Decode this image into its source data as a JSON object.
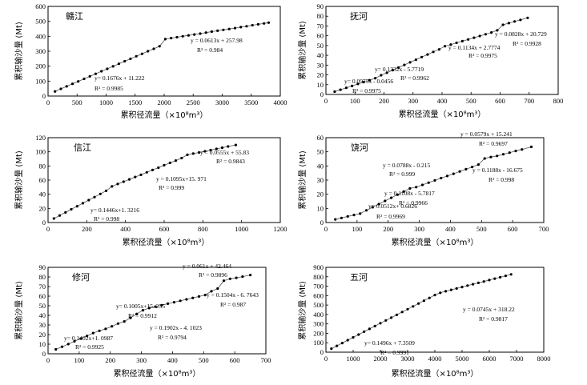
{
  "figure": {
    "xlabel": "累积径流量（×10⁸m³）",
    "ylabel": "累积输沙量 (Mt)"
  },
  "chart_data": [
    {
      "type": "scatter",
      "title": "赣江",
      "xlim": [
        0,
        4000
      ],
      "ylim": [
        0,
        600
      ],
      "xticks": [
        0,
        500,
        1000,
        1500,
        2000,
        2500,
        3000,
        3500,
        4000
      ],
      "yticks": [
        0,
        100,
        200,
        300,
        400,
        500,
        600
      ],
      "tick_labels_x": [
        "0",
        "500",
        "1000",
        "1500",
        "2000",
        "2500",
        "3000",
        "3500",
        "4000"
      ],
      "tick_labels_y": [
        "0",
        "100",
        "200",
        "300",
        "400",
        "500",
        "600"
      ],
      "xlabel": "累积径流量（×10⁸m³）",
      "ylabel": "累积输沙量 (Mt)",
      "breaks": [
        120,
        2000,
        3800
      ],
      "points": [
        [
          120,
          31
        ],
        [
          220,
          48
        ],
        [
          320,
          65
        ],
        [
          420,
          82
        ],
        [
          520,
          98
        ],
        [
          620,
          115
        ],
        [
          720,
          132
        ],
        [
          820,
          149
        ],
        [
          920,
          166
        ],
        [
          1020,
          182
        ],
        [
          1120,
          199
        ],
        [
          1220,
          216
        ],
        [
          1320,
          233
        ],
        [
          1420,
          249
        ],
        [
          1520,
          266
        ],
        [
          1620,
          283
        ],
        [
          1720,
          300
        ],
        [
          1820,
          316
        ],
        [
          1920,
          333
        ],
        [
          2020,
          381
        ],
        [
          2120,
          388
        ],
        [
          2220,
          394
        ],
        [
          2320,
          400
        ],
        [
          2420,
          406
        ],
        [
          2520,
          412
        ],
        [
          2620,
          418
        ],
        [
          2720,
          425
        ],
        [
          2820,
          431
        ],
        [
          2920,
          437
        ],
        [
          3020,
          443
        ],
        [
          3120,
          449
        ],
        [
          3220,
          455
        ],
        [
          3320,
          461
        ],
        [
          3420,
          467
        ],
        [
          3520,
          474
        ],
        [
          3620,
          480
        ],
        [
          3720,
          486
        ],
        [
          3800,
          491
        ]
      ],
      "fits": [
        {
          "slope": 0.1676,
          "intercept": 11.222,
          "from": 120,
          "to": 2000,
          "eq": "y= 0.1676x + 11.222",
          "r2": "R² = 0.9985"
        },
        {
          "slope": 0.0613,
          "intercept": 257.98,
          "from": 2000,
          "to": 3800,
          "eq": "y = 0.0613x + 257.98",
          "r2": "R² = 0.984"
        }
      ]
    },
    {
      "type": "scatter",
      "title": "抚河",
      "xlim": [
        0,
        800
      ],
      "ylim": [
        0,
        90
      ],
      "xticks": [
        0,
        100,
        200,
        300,
        400,
        500,
        600,
        700,
        800
      ],
      "yticks": [
        0,
        10,
        20,
        30,
        40,
        50,
        60,
        70,
        80,
        90
      ],
      "tick_labels_x": [
        "0",
        "100",
        "200",
        "300",
        "400",
        "500",
        "600",
        "700",
        "800"
      ],
      "tick_labels_y": [
        "0",
        "10",
        "20",
        "30",
        "40",
        "50",
        "60",
        "70",
        "80",
        "90"
      ],
      "xlabel": "累积径流量（×10⁸m³）",
      "ylabel": "累积输沙量 (Mt)",
      "points": [
        [
          30,
          2.9
        ],
        [
          50,
          4.8
        ],
        [
          70,
          6.8
        ],
        [
          90,
          8.7
        ],
        [
          110,
          10.7
        ],
        [
          130,
          12.6
        ],
        [
          150,
          14.6
        ],
        [
          170,
          16.6
        ],
        [
          190,
          19.6
        ],
        [
          210,
          22.2
        ],
        [
          230,
          24.9
        ],
        [
          250,
          27.5
        ],
        [
          270,
          30.2
        ],
        [
          290,
          32.8
        ],
        [
          310,
          35.5
        ],
        [
          330,
          38.2
        ],
        [
          350,
          40.8
        ],
        [
          370,
          43.5
        ],
        [
          390,
          46.1
        ],
        [
          410,
          49.3
        ],
        [
          430,
          51.0
        ],
        [
          450,
          52.8
        ],
        [
          470,
          54.5
        ],
        [
          490,
          56.2
        ],
        [
          510,
          58.0
        ],
        [
          530,
          59.7
        ],
        [
          550,
          61.5
        ],
        [
          570,
          63.3
        ],
        [
          590,
          65.5
        ],
        [
          610,
          71.2
        ],
        [
          630,
          72.9
        ],
        [
          650,
          74.6
        ],
        [
          670,
          76.2
        ],
        [
          695,
          78.3
        ]
      ],
      "fits": [
        {
          "slope": 0.0975,
          "intercept": -0.0456,
          "eq": "y= 0.0975x - 0.0456",
          "r2": "R² = 0.9975"
        },
        {
          "slope": 0.1332,
          "intercept": -5.7719,
          "eq": "y= 0.1332x - 5.7719",
          "r2": "R² = 0.9962"
        },
        {
          "slope": 0.1134,
          "intercept": 2.7774,
          "eq": "y = 0.1134x + 2.7774",
          "r2": "R² = 0.9975"
        },
        {
          "slope": 0.0828,
          "intercept": 20.729,
          "eq": "y = 0.0828x + 20.729",
          "r2": "R² = 0.9928"
        }
      ]
    },
    {
      "type": "scatter",
      "title": "信江",
      "xlim": [
        0,
        1200
      ],
      "ylim": [
        0,
        120
      ],
      "xticks": [
        0,
        200,
        400,
        600,
        800,
        1000,
        1200
      ],
      "yticks": [
        0,
        20,
        40,
        60,
        80,
        100,
        120
      ],
      "tick_labels_x": [
        "0",
        "200",
        "400",
        "600",
        "800",
        "1000",
        "1200"
      ],
      "tick_labels_y": [
        "0",
        "20",
        "40",
        "60",
        "80",
        "100",
        "120"
      ],
      "xlabel": "累积径流量（×10⁸m³）",
      "ylabel": "累积输沙量 (Mt)",
      "points": [
        [
          30,
          5.7
        ],
        [
          60,
          10.0
        ],
        [
          90,
          14.3
        ],
        [
          120,
          18.7
        ],
        [
          150,
          23.0
        ],
        [
          180,
          27.3
        ],
        [
          210,
          31.7
        ],
        [
          240,
          36.0
        ],
        [
          270,
          40.4
        ],
        [
          300,
          44.8
        ],
        [
          330,
          51.1
        ],
        [
          360,
          54.4
        ],
        [
          390,
          57.7
        ],
        [
          420,
          61.0
        ],
        [
          450,
          64.4
        ],
        [
          480,
          67.5
        ],
        [
          510,
          71.0
        ],
        [
          540,
          74.3
        ],
        [
          570,
          77.6
        ],
        [
          600,
          81.0
        ],
        [
          630,
          84.3
        ],
        [
          660,
          87.6
        ],
        [
          690,
          91.1
        ],
        [
          720,
          95.8
        ],
        [
          750,
          97.5
        ],
        [
          780,
          99.1
        ],
        [
          810,
          100.8
        ],
        [
          840,
          102.4
        ],
        [
          870,
          104.1
        ],
        [
          900,
          105.8
        ],
        [
          930,
          107.5
        ],
        [
          970,
          109.7
        ]
      ],
      "fits": [
        {
          "slope": 0.1446,
          "intercept": 1.3216,
          "eq": "y= 0.1446x+1. 3216",
          "r2": "R² = 0.998"
        },
        {
          "slope": 0.1095,
          "intercept": 15.971,
          "eq": "y = 0.1095x+15. 971",
          "r2": "R² = 0.999"
        },
        {
          "slope": 0.0555,
          "intercept": 55.83,
          "eq": "y = 0.0555x + 55.83",
          "r2": "R² = 0.9843"
        }
      ]
    },
    {
      "type": "scatter",
      "title": "饶河",
      "xlim": [
        0,
        700
      ],
      "ylim": [
        0,
        60
      ],
      "xticks": [
        0,
        100,
        200,
        300,
        400,
        500,
        600,
        700
      ],
      "yticks": [
        0,
        10,
        20,
        30,
        40,
        50,
        60
      ],
      "tick_labels_x": [
        "0",
        "100",
        "200",
        "300",
        "400",
        "500",
        "600",
        "700"
      ],
      "tick_labels_y": [
        "0",
        "10",
        "20",
        "30",
        "40",
        "50",
        "60"
      ],
      "xlabel": "累积径流量（×10⁸m³）",
      "ylabel": "累积输沙量 (Mt)",
      "points": [
        [
          30,
          2.2
        ],
        [
          50,
          3.2
        ],
        [
          70,
          4.3
        ],
        [
          90,
          5.3
        ],
        [
          110,
          6.3
        ],
        [
          130,
          8.6
        ],
        [
          150,
          10.8
        ],
        [
          170,
          13.0
        ],
        [
          190,
          15.3
        ],
        [
          210,
          17.5
        ],
        [
          230,
          19.7
        ],
        [
          250,
          21.9
        ],
        [
          270,
          24.1
        ],
        [
          290,
          25.0
        ],
        [
          310,
          26.6
        ],
        [
          330,
          28.2
        ],
        [
          350,
          29.8
        ],
        [
          370,
          31.4
        ],
        [
          390,
          32.9
        ],
        [
          410,
          34.5
        ],
        [
          430,
          36.1
        ],
        [
          450,
          37.7
        ],
        [
          470,
          39.3
        ],
        [
          490,
          41.0
        ],
        [
          510,
          45.3
        ],
        [
          530,
          46.3
        ],
        [
          550,
          47.1
        ],
        [
          570,
          48.3
        ],
        [
          590,
          49.4
        ],
        [
          610,
          50.6
        ],
        [
          630,
          51.7
        ],
        [
          660,
          53.5
        ]
      ],
      "fits": [
        {
          "slope": 0.0512,
          "intercept": 0.6826,
          "eq": "y= 0.0512x+ 0.6826",
          "r2": "R² = 0.9969"
        },
        {
          "slope": 0.1108,
          "intercept": -5.7817,
          "eq": "y = 0.1108x - 5.7817",
          "r2": "R² = 0.9966"
        },
        {
          "slope": 0.0788,
          "intercept": -0.215,
          "eq": "y = 0.0788x - 0.215",
          "r2": "R² = 0.999"
        },
        {
          "slope": 0.1188,
          "intercept": -16.675,
          "eq": "y = 0.1188x - 16.675",
          "r2": "R² = 0.998"
        },
        {
          "slope": 0.0579,
          "intercept": 15.241,
          "eq": "y = 0.0579x + 15.241",
          "r2": "R² = 0.9697"
        }
      ]
    },
    {
      "type": "scatter",
      "title": "修河",
      "xlim": [
        0,
        700
      ],
      "ylim": [
        0,
        90
      ],
      "xticks": [
        0,
        100,
        200,
        300,
        400,
        500,
        600,
        700
      ],
      "yticks": [
        0,
        10,
        20,
        30,
        40,
        50,
        60,
        70,
        80,
        90
      ],
      "tick_labels_x": [
        "0",
        "100",
        "200",
        "300",
        "400",
        "500",
        "600",
        "700"
      ],
      "tick_labels_y": [
        "0",
        "10",
        "20",
        "30",
        "40",
        "50",
        "60",
        "70",
        "80",
        "90"
      ],
      "xlabel": "累积径流量（×10⁸m³）",
      "ylabel": "累积输沙量 (Mt)",
      "points": [
        [
          25,
          4.6
        ],
        [
          45,
          7.3
        ],
        [
          65,
          10.1
        ],
        [
          85,
          13.0
        ],
        [
          105,
          15.8
        ],
        [
          125,
          18.6
        ],
        [
          145,
          21.6
        ],
        [
          165,
          23.9
        ],
        [
          185,
          25.9
        ],
        [
          205,
          28.6
        ],
        [
          225,
          31.4
        ],
        [
          245,
          33.7
        ],
        [
          265,
          37.4
        ],
        [
          285,
          41.5
        ],
        [
          305,
          45.3
        ],
        [
          325,
          47.6
        ],
        [
          345,
          49.1
        ],
        [
          365,
          50.6
        ],
        [
          385,
          52.2
        ],
        [
          405,
          53.7
        ],
        [
          425,
          55.2
        ],
        [
          445,
          56.7
        ],
        [
          465,
          58.2
        ],
        [
          485,
          59.7
        ],
        [
          505,
          61.2
        ],
        [
          525,
          65.1
        ],
        [
          545,
          67.9
        ],
        [
          565,
          76.1
        ],
        [
          585,
          78.1
        ],
        [
          605,
          79.1
        ],
        [
          625,
          80.3
        ],
        [
          650,
          82.0
        ]
      ],
      "fits": [
        {
          "slope": 0.1402,
          "intercept": 1.0987,
          "eq": "y= 0.1402x+1. 0987",
          "r2": "R² = 0.9925"
        },
        {
          "slope": 0.1005,
          "intercept": 15.235,
          "eq": "y= 0.1005x+15. 235",
          "r2": "R² = 0.9912"
        },
        {
          "slope": 0.1902,
          "intercept": -4.1023,
          "eq": "y = 0.1902x - 4. 1023",
          "r2": "R² = 0.9794"
        },
        {
          "slope": 0.1504,
          "intercept": -6.7643,
          "eq": "y = 0.1504x - 6. 7643",
          "r2": "R² = 0.987"
        },
        {
          "slope": 0.061,
          "intercept": 42.464,
          "eq": "y = 0.061x + 42.464",
          "r2": "R² = 0.9896"
        }
      ]
    },
    {
      "type": "scatter",
      "title": "五河",
      "xlim": [
        0,
        8000
      ],
      "ylim": [
        0,
        900
      ],
      "xticks": [
        0,
        1000,
        2000,
        3000,
        4000,
        5000,
        6000,
        7000,
        8000
      ],
      "yticks": [
        0,
        100,
        200,
        300,
        400,
        500,
        600,
        700,
        800,
        900
      ],
      "tick_labels_x": [
        "0",
        "1000",
        "2000",
        "3000",
        "4000",
        "5000",
        "6000",
        "7000",
        "8000"
      ],
      "tick_labels_y": [
        "0",
        "100",
        "200",
        "300",
        "400",
        "500",
        "600",
        "700",
        "800",
        "900"
      ],
      "xlabel": "累积径流量（×10⁸m³）",
      "ylabel": "累积输沙量 (Mt)",
      "points": [
        [
          200,
          37
        ],
        [
          400,
          67
        ],
        [
          600,
          97
        ],
        [
          800,
          127
        ],
        [
          1000,
          157
        ],
        [
          1200,
          187
        ],
        [
          1400,
          217
        ],
        [
          1600,
          247
        ],
        [
          1800,
          277
        ],
        [
          2000,
          307
        ],
        [
          2200,
          337
        ],
        [
          2400,
          366
        ],
        [
          2600,
          396
        ],
        [
          2800,
          426
        ],
        [
          3000,
          456
        ],
        [
          3200,
          486
        ],
        [
          3400,
          516
        ],
        [
          3600,
          546
        ],
        [
          3800,
          576
        ],
        [
          4000,
          606
        ],
        [
          4200,
          630
        ],
        [
          4400,
          646
        ],
        [
          4600,
          661
        ],
        [
          4800,
          676
        ],
        [
          5000,
          691
        ],
        [
          5200,
          706
        ],
        [
          5400,
          721
        ],
        [
          5600,
          735
        ],
        [
          5800,
          750
        ],
        [
          6000,
          765
        ],
        [
          6200,
          780
        ],
        [
          6400,
          795
        ],
        [
          6600,
          810
        ],
        [
          6800,
          825
        ]
      ],
      "fits": [
        {
          "slope": 0.1496,
          "intercept": 7.3509,
          "eq": "y= 0.1496x + 7.3509",
          "r2": "R² = 0.9991"
        },
        {
          "slope": 0.0745,
          "intercept": 318.22,
          "eq": "y = 0.0745x + 318.22",
          "r2": "R² = 0.9817"
        }
      ]
    }
  ]
}
